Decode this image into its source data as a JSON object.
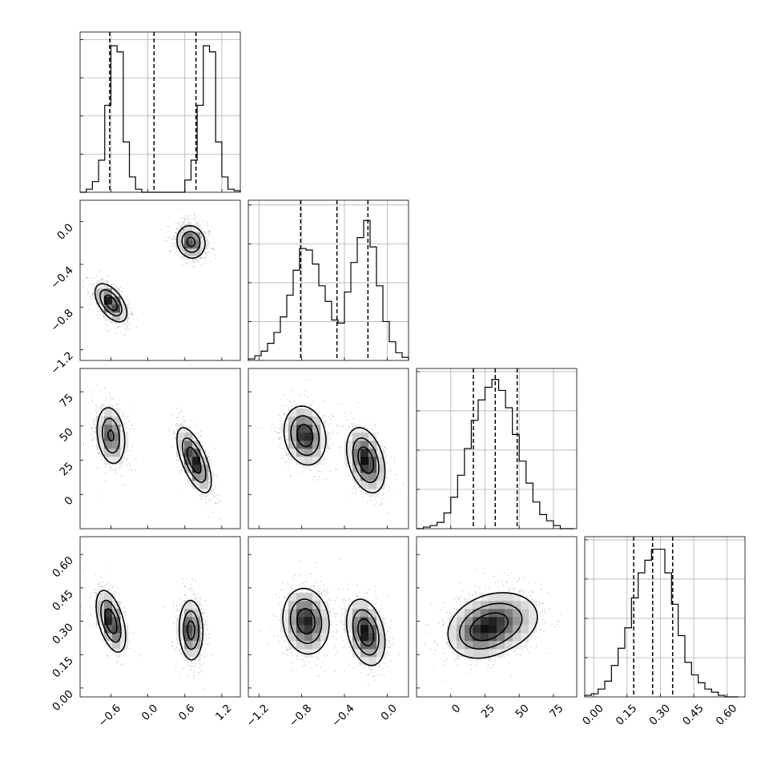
{
  "chart_data": {
    "type": "corner",
    "n_params": 4,
    "grid": true,
    "parameters": [
      {
        "range": [
          -1.1,
          1.5
        ],
        "ticks": [
          -0.6,
          0.0,
          0.6,
          1.2
        ],
        "tick_labels": [
          "−0.6",
          "0.0",
          "0.6",
          "1.2"
        ]
      },
      {
        "range": [
          -1.3,
          0.2
        ],
        "ticks": [
          -1.2,
          -0.8,
          -0.4,
          0.0
        ],
        "tick_labels": [
          "−1.2",
          "−0.8",
          "−0.4",
          "0.0"
        ]
      },
      {
        "range": [
          -25,
          92
        ],
        "ticks": [
          0,
          25,
          50,
          75
        ],
        "tick_labels": [
          "0",
          "25",
          "50",
          "75"
        ]
      },
      {
        "range": [
          -0.04,
          0.68
        ],
        "ticks": [
          0.0,
          0.15,
          0.3,
          0.45,
          0.6
        ],
        "tick_labels": [
          "0.00",
          "0.15",
          "0.30",
          "0.45",
          "0.60"
        ]
      }
    ],
    "histograms": [
      {
        "bin_edges": [
          -1.1,
          -1.0,
          -0.9,
          -0.8,
          -0.7,
          -0.6,
          -0.5,
          -0.4,
          -0.3,
          -0.2,
          -0.1,
          0.0,
          0.1,
          0.2,
          0.3,
          0.4,
          0.5,
          0.6,
          0.7,
          0.8,
          0.9,
          1.0,
          1.1,
          1.2,
          1.3,
          1.4,
          1.5
        ],
        "counts": [
          0,
          2,
          7,
          21,
          57,
          96,
          92,
          33,
          10,
          2,
          0,
          0,
          0,
          0,
          0,
          0,
          0,
          8,
          21,
          57,
          96,
          92,
          33,
          10,
          2,
          1
        ],
        "ymax": 105,
        "quantiles": [
          -0.62,
          0.1,
          0.78
        ]
      },
      {
        "bin_edges": [
          -1.3,
          -1.24,
          -1.18,
          -1.12,
          -1.06,
          -1.0,
          -0.94,
          -0.88,
          -0.82,
          -0.76,
          -0.7,
          -0.64,
          -0.58,
          -0.52,
          -0.46,
          -0.4,
          -0.34,
          -0.28,
          -0.22,
          -0.16,
          -0.1,
          -0.04,
          0.02,
          0.08,
          0.14,
          0.2
        ],
        "counts": [
          1,
          3,
          6,
          11,
          18,
          28,
          42,
          58,
          72,
          71,
          62,
          48,
          38,
          26,
          24,
          44,
          63,
          79,
          90,
          73,
          48,
          25,
          12,
          5,
          2
        ],
        "ymax": 103,
        "quantiles": [
          -0.81,
          -0.47,
          -0.18
        ]
      },
      {
        "bin_edges": [
          -25,
          -20,
          -15,
          -10,
          -5,
          0,
          5,
          10,
          15,
          20,
          25,
          30,
          35,
          40,
          45,
          50,
          55,
          60,
          65,
          70,
          75,
          80,
          85,
          90
        ],
        "counts": [
          0,
          1,
          2,
          4,
          10,
          20,
          34,
          51,
          69,
          82,
          90,
          95,
          88,
          77,
          60,
          43,
          29,
          17,
          9,
          5,
          2,
          0,
          0
        ],
        "ymax": 102,
        "quantiles": [
          16.5,
          32.5,
          48.5
        ]
      },
      {
        "bin_edges": [
          -0.04,
          -0.01,
          0.02,
          0.05,
          0.08,
          0.11,
          0.14,
          0.17,
          0.2,
          0.23,
          0.26,
          0.29,
          0.32,
          0.35,
          0.38,
          0.41,
          0.44,
          0.47,
          0.5,
          0.53,
          0.56,
          0.59,
          0.62,
          0.65
        ],
        "counts": [
          1,
          2,
          5,
          10,
          20,
          31,
          44,
          63,
          79,
          87,
          94,
          94,
          79,
          59,
          39,
          22,
          14,
          9,
          5,
          3,
          1,
          0,
          0
        ],
        "ymax": 102,
        "quantiles": [
          0.18,
          0.265,
          0.355
        ]
      }
    ],
    "distributions": [
      {
        "pairs": [
          0,
          1
        ],
        "components": [
          {
            "center": [
              -0.6,
              -0.76
            ],
            "spread": [
              0.13,
              0.09
            ],
            "rho": -0.55,
            "weight": 0.5
          },
          {
            "center": [
              0.7,
              -0.19
            ],
            "spread": [
              0.12,
              0.08
            ],
            "rho": -0.1,
            "weight": 0.5
          }
        ]
      },
      {
        "pairs": [
          0,
          2
        ],
        "components": [
          {
            "center": [
              -0.6,
              43
            ],
            "spread": [
              0.12,
              11
            ],
            "rho": -0.2,
            "weight": 0.5
          },
          {
            "center": [
              0.75,
              25
            ],
            "spread": [
              0.14,
              12
            ],
            "rho": -0.65,
            "weight": 0.5
          }
        ]
      },
      {
        "pairs": [
          1,
          2
        ],
        "components": [
          {
            "center": [
              -0.77,
              43
            ],
            "spread": [
              0.1,
              11
            ],
            "rho": -0.15,
            "weight": 0.5
          },
          {
            "center": [
              -0.2,
              25
            ],
            "spread": [
              0.09,
              12
            ],
            "rho": -0.35,
            "weight": 0.5
          }
        ]
      },
      {
        "pairs": [
          0,
          3
        ],
        "components": [
          {
            "center": [
              -0.6,
              0.3
            ],
            "spread": [
              0.12,
              0.07
            ],
            "rho": -0.5,
            "weight": 0.5
          },
          {
            "center": [
              0.7,
              0.26
            ],
            "spread": [
              0.1,
              0.07
            ],
            "rho": -0.05,
            "weight": 0.5
          }
        ]
      },
      {
        "pairs": [
          1,
          3
        ],
        "components": [
          {
            "center": [
              -0.76,
              0.3
            ],
            "spread": [
              0.11,
              0.075
            ],
            "rho": -0.1,
            "weight": 0.5
          },
          {
            "center": [
              -0.2,
              0.25
            ],
            "spread": [
              0.09,
              0.075
            ],
            "rho": -0.3,
            "weight": 0.5
          }
        ]
      },
      {
        "pairs": [
          2,
          3
        ],
        "components": [
          {
            "center": [
              34,
              0.3
            ],
            "spread": [
              16,
              0.07
            ],
            "rho": 0.15,
            "weight": 0.6
          },
          {
            "center": [
              20,
              0.24
            ],
            "spread": [
              12,
              0.06
            ],
            "rho": 0.1,
            "weight": 0.4
          }
        ]
      }
    ]
  }
}
